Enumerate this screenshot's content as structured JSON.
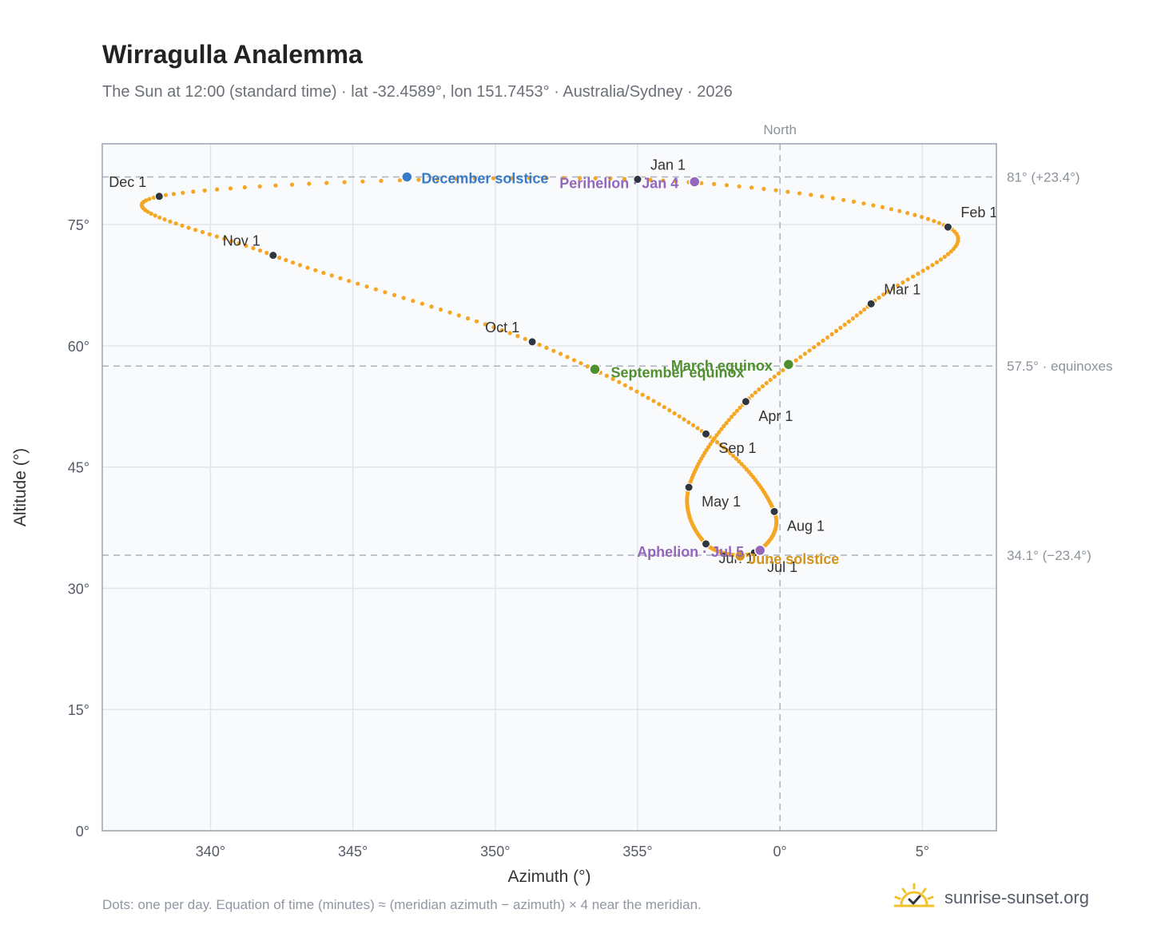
{
  "title": "Wirragulla Analemma",
  "subtitle": "The Sun at 12:00 (standard time) · lat -32.4589°, lon 151.7453° · Australia/Sydney · 2026",
  "footnote": "Dots: one per day. Equation of time (minutes) ≈ (meridian azimuth − azimuth) × 4 near the meridian.",
  "brand": "sunrise-sunset.org",
  "colors": {
    "path": "#f5a623",
    "month_dot": "#2f3640",
    "december_solstice": "#3a7bc8",
    "june_solstice": "#d4941a",
    "equinox": "#4f8f2f",
    "perihelion_aphelion": "#9467bd",
    "plot_bg": "#f8fafc",
    "grid": "#e1e6ec",
    "ref_line": "#aab2bd"
  },
  "chart_data": {
    "type": "scatter",
    "xlabel": "Azimuth (°)",
    "ylabel": "Altitude (°)",
    "xlim": [
      -23.8,
      7.6
    ],
    "ylim": [
      0,
      85
    ],
    "x_ticks": [
      {
        "value": -20,
        "label": "340°"
      },
      {
        "value": -15,
        "label": "345°"
      },
      {
        "value": -10,
        "label": "350°"
      },
      {
        "value": -5,
        "label": "355°"
      },
      {
        "value": 0,
        "label": "0°"
      },
      {
        "value": 5,
        "label": "5°"
      }
    ],
    "y_ticks": [
      {
        "value": 0,
        "label": "0°"
      },
      {
        "value": 15,
        "label": "15°"
      },
      {
        "value": 30,
        "label": "30°"
      },
      {
        "value": 45,
        "label": "45°"
      },
      {
        "value": 60,
        "label": "60°"
      },
      {
        "value": 75,
        "label": "75°"
      }
    ],
    "grid": true,
    "north_label": "North",
    "reference_lines": [
      {
        "altitude": 80.9,
        "label": "81° (+23.4°)"
      },
      {
        "altitude": 57.5,
        "label": "57.5° · equinoxes"
      },
      {
        "altitude": 34.1,
        "label": "34.1° (−23.4°)"
      }
    ],
    "month_points": [
      {
        "label": "Jan 1",
        "azimuth": -5.0,
        "altitude": 80.6
      },
      {
        "label": "Feb 1",
        "azimuth": 5.9,
        "altitude": 74.7
      },
      {
        "label": "Mar 1",
        "azimuth": 3.2,
        "altitude": 65.2
      },
      {
        "label": "Apr 1",
        "azimuth": -1.2,
        "altitude": 53.1
      },
      {
        "label": "May 1",
        "azimuth": -3.2,
        "altitude": 42.5
      },
      {
        "label": "Jun 1",
        "azimuth": -2.6,
        "altitude": 35.5
      },
      {
        "label": "Jul 1",
        "azimuth": -0.9,
        "altitude": 34.4
      },
      {
        "label": "Aug 1",
        "azimuth": -0.2,
        "altitude": 39.5
      },
      {
        "label": "Sep 1",
        "azimuth": -2.6,
        "altitude": 49.1
      },
      {
        "label": "Oct 1",
        "azimuth": -8.7,
        "altitude": 60.5
      },
      {
        "label": "Nov 1",
        "azimuth": -17.8,
        "altitude": 71.2
      },
      {
        "label": "Dec 1",
        "azimuth": -21.8,
        "altitude": 78.5
      }
    ],
    "events": [
      {
        "label": "December solstice",
        "azimuth": -13.1,
        "altitude": 80.9,
        "color_key": "december_solstice"
      },
      {
        "label": "Perihelion · Jan 4",
        "azimuth": -3.0,
        "altitude": 80.3,
        "color_key": "perihelion_aphelion"
      },
      {
        "label": "March equinox",
        "azimuth": 0.3,
        "altitude": 57.7,
        "color_key": "equinox"
      },
      {
        "label": "September equinox",
        "azimuth": -6.5,
        "altitude": 57.1,
        "color_key": "equinox"
      },
      {
        "label": "June solstice",
        "azimuth": -1.4,
        "altitude": 34.0,
        "color_key": "june_solstice"
      },
      {
        "label": "Aphelion · Jul 5",
        "azimuth": -0.7,
        "altitude": 34.7,
        "color_key": "perihelion_aphelion"
      }
    ]
  }
}
